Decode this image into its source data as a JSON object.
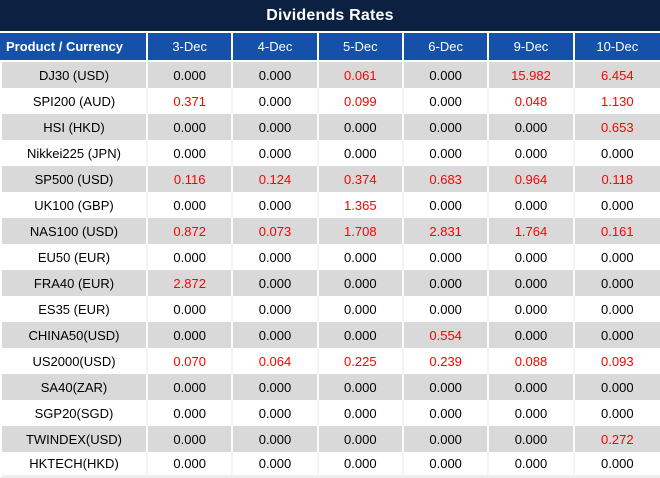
{
  "title": "Dividends Rates",
  "colors": {
    "title_bg": "#0C2142",
    "header_bg": "#1551A8",
    "row_alt_bg": "#D9D9D9",
    "row_bg": "#FFFFFF",
    "value_red": "#FF0000",
    "text_black": "#000000",
    "header_text": "#FFFFFF"
  },
  "table": {
    "columns": [
      "Product / Currency",
      "3-Dec",
      "4-Dec",
      "5-Dec",
      "6-Dec",
      "9-Dec",
      "10-Dec"
    ],
    "zero_value": "0.000",
    "rows": [
      {
        "product": "DJ30 (USD)",
        "values": [
          "0.000",
          "0.000",
          "0.061",
          "0.000",
          "15.982",
          "6.454"
        ]
      },
      {
        "product": "SPI200 (AUD)",
        "values": [
          "0.371",
          "0.000",
          "0.099",
          "0.000",
          "0.048",
          "1.130"
        ]
      },
      {
        "product": "HSI (HKD)",
        "values": [
          "0.000",
          "0.000",
          "0.000",
          "0.000",
          "0.000",
          "0.653"
        ]
      },
      {
        "product": "Nikkei225 (JPN)",
        "values": [
          "0.000",
          "0.000",
          "0.000",
          "0.000",
          "0.000",
          "0.000"
        ]
      },
      {
        "product": "SP500 (USD)",
        "values": [
          "0.116",
          "0.124",
          "0.374",
          "0.683",
          "0.964",
          "0.118"
        ]
      },
      {
        "product": "UK100 (GBP)",
        "values": [
          "0.000",
          "0.000",
          "1.365",
          "0.000",
          "0.000",
          "0.000"
        ]
      },
      {
        "product": "NAS100 (USD)",
        "values": [
          "0.872",
          "0.073",
          "1.708",
          "2.831",
          "1.764",
          "0.161"
        ]
      },
      {
        "product": "EU50 (EUR)",
        "values": [
          "0.000",
          "0.000",
          "0.000",
          "0.000",
          "0.000",
          "0.000"
        ]
      },
      {
        "product": "FRA40 (EUR)",
        "values": [
          "2.872",
          "0.000",
          "0.000",
          "0.000",
          "0.000",
          "0.000"
        ]
      },
      {
        "product": "ES35 (EUR)",
        "values": [
          "0.000",
          "0.000",
          "0.000",
          "0.000",
          "0.000",
          "0.000"
        ]
      },
      {
        "product": "CHINA50(USD)",
        "values": [
          "0.000",
          "0.000",
          "0.000",
          "0.554",
          "0.000",
          "0.000"
        ]
      },
      {
        "product": "US2000(USD)",
        "values": [
          "0.070",
          "0.064",
          "0.225",
          "0.239",
          "0.088",
          "0.093"
        ]
      },
      {
        "product": "SA40(ZAR)",
        "values": [
          "0.000",
          "0.000",
          "0.000",
          "0.000",
          "0.000",
          "0.000"
        ]
      },
      {
        "product": "SGP20(SGD)",
        "values": [
          "0.000",
          "0.000",
          "0.000",
          "0.000",
          "0.000",
          "0.000"
        ]
      },
      {
        "product": "TWINDEX(USD)",
        "values": [
          "0.000",
          "0.000",
          "0.000",
          "0.000",
          "0.000",
          "0.272"
        ]
      },
      {
        "product": "HKTECH(HKD)",
        "values": [
          "0.000",
          "0.000",
          "0.000",
          "0.000",
          "0.000",
          "0.000"
        ]
      }
    ]
  }
}
